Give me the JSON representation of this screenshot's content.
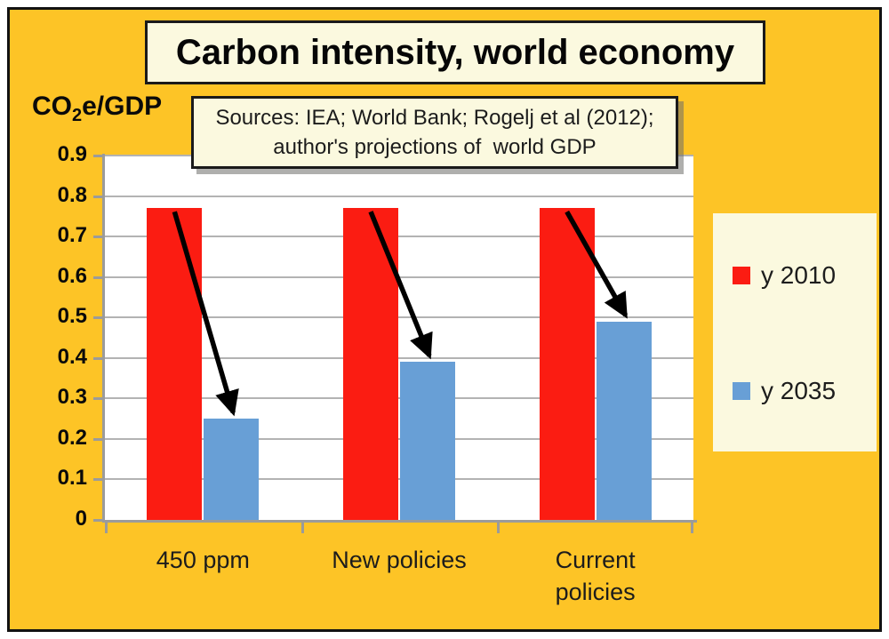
{
  "title": "Carbon intensity, world economy",
  "y_axis_title": {
    "prefix": "CO",
    "subscript": "2",
    "suffix": "e/GDP"
  },
  "sources_note": {
    "line1": "Sources: IEA; World Bank; Rogelj et al (2012);",
    "line2": "author's projections of  world GDP"
  },
  "chart_data": {
    "type": "bar",
    "categories": [
      "450 ppm",
      "New policies",
      "Current\npolicies"
    ],
    "series": [
      {
        "name": "y 2010",
        "color": "#fb1c12",
        "values": [
          0.77,
          0.77,
          0.77
        ]
      },
      {
        "name": "y 2035",
        "color": "#689fd6",
        "values": [
          0.25,
          0.39,
          0.49
        ]
      }
    ],
    "ylim": [
      0,
      0.9
    ],
    "y_ticks": [
      {
        "value": 0.0,
        "label": "0"
      },
      {
        "value": 0.1,
        "label": "0.1"
      },
      {
        "value": 0.2,
        "label": "0.2"
      },
      {
        "value": 0.3,
        "label": "0.3"
      },
      {
        "value": 0.4,
        "label": "0.4"
      },
      {
        "value": 0.5,
        "label": "0.5"
      },
      {
        "value": 0.6,
        "label": "0.6"
      },
      {
        "value": 0.7,
        "label": "0.7"
      },
      {
        "value": 0.8,
        "label": "0.8"
      },
      {
        "value": 0.9,
        "label": "0.9"
      }
    ],
    "grid": "horizontal",
    "legend_position": "right",
    "annotations": [
      "black arrow from 2010 bar top to 2035 bar top (450 ppm)",
      "black arrow from 2010 bar top to 2035 bar top (New policies)",
      "black arrow from 2010 bar top to 2035 bar top (Current policies)"
    ]
  },
  "colors": {
    "background": "#fdc426",
    "panel_cream": "#fbf9df",
    "bar_2010_red": "#fb1c12",
    "bar_2035_blue": "#689fd6",
    "gridline_gray": "#b3b3b3",
    "axis_gray": "#9b9b9b",
    "arrow_black": "#000000"
  }
}
